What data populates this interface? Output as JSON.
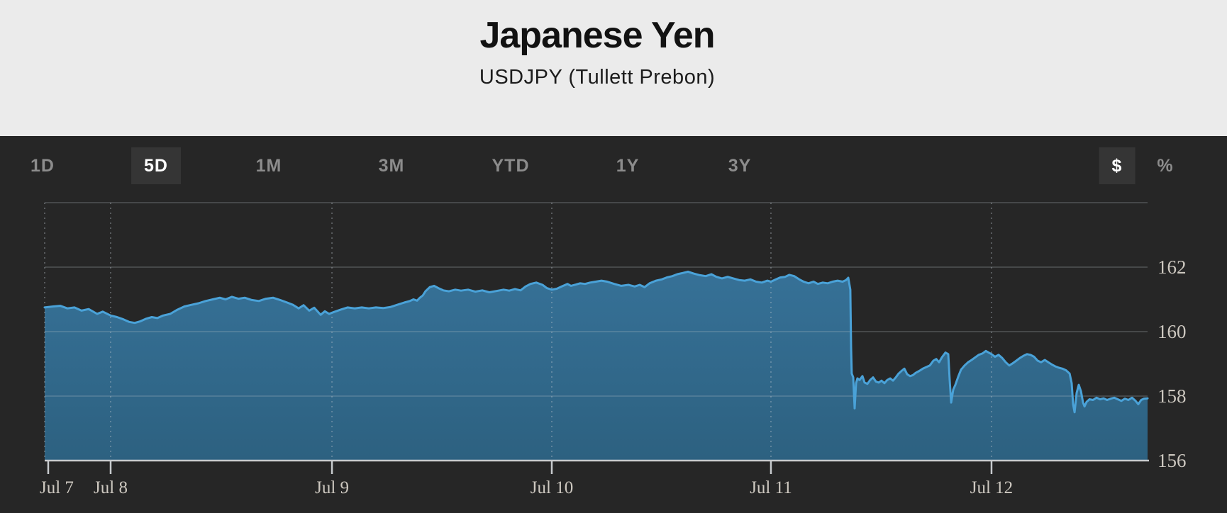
{
  "header": {
    "title": "Japanese Yen",
    "subtitle": "USDJPY  (Tullett Prebon)"
  },
  "toolbar": {
    "ranges": [
      {
        "label": "1D",
        "active": false
      },
      {
        "label": "5D",
        "active": true
      },
      {
        "label": "1M",
        "active": false
      },
      {
        "label": "3M",
        "active": false
      },
      {
        "label": "YTD",
        "active": false
      },
      {
        "label": "1Y",
        "active": false
      },
      {
        "label": "3Y",
        "active": false
      }
    ],
    "units": [
      {
        "label": "$",
        "active": true
      },
      {
        "label": "%",
        "active": false
      }
    ]
  },
  "colors": {
    "header_bg": "#ebebeb",
    "panel_bg": "#262626",
    "active_tab_bg": "#353535",
    "tab_text": "#8c8c8c",
    "line": "#4aa2d8",
    "area_top": "rgba(55,117,157,0.95)",
    "area_bottom": "rgba(45,100,133,0.95)",
    "grid": "rgba(185,195,202,0.22)",
    "grid_dotted": "rgba(185,195,202,0.35)",
    "axis": "#c7cacd",
    "axis_text": "#cdc8c0"
  },
  "chart_data": {
    "type": "area",
    "title": "Japanese Yen",
    "subtitle": "USDJPY (Tullett Prebon)",
    "series_name": "USDJPY",
    "xlabel": "",
    "ylabel": "",
    "ylim": [
      156,
      164
    ],
    "y_ticks": [
      156,
      158,
      160,
      162
    ],
    "grid": true,
    "legend": false,
    "y_axis_side": "right",
    "x_ticks": [
      {
        "label": "Jul 7",
        "f": 0.0032,
        "label_dx": 12
      },
      {
        "label": "Jul 8",
        "f": 0.0598,
        "label_dx": 0
      },
      {
        "label": "Jul 9",
        "f": 0.2605,
        "label_dx": 0
      },
      {
        "label": "Jul 10",
        "f": 0.4598,
        "label_dx": 0
      },
      {
        "label": "Jul 11",
        "f": 0.6585,
        "label_dx": 0
      },
      {
        "label": "Jul 12",
        "f": 0.8585,
        "label_dx": 0
      }
    ],
    "points": [
      [
        0.0,
        160.75
      ],
      [
        0.0077,
        160.78
      ],
      [
        0.0141,
        160.8
      ],
      [
        0.0206,
        160.72
      ],
      [
        0.027,
        160.75
      ],
      [
        0.0334,
        160.65
      ],
      [
        0.0399,
        160.7
      ],
      [
        0.0476,
        160.55
      ],
      [
        0.0527,
        160.62
      ],
      [
        0.0598,
        160.5
      ],
      [
        0.0656,
        160.45
      ],
      [
        0.0714,
        160.38
      ],
      [
        0.0765,
        160.3
      ],
      [
        0.0817,
        160.27
      ],
      [
        0.0868,
        160.32
      ],
      [
        0.092,
        160.4
      ],
      [
        0.0971,
        160.45
      ],
      [
        0.1022,
        160.42
      ],
      [
        0.1074,
        160.5
      ],
      [
        0.1138,
        160.55
      ],
      [
        0.1203,
        160.68
      ],
      [
        0.1267,
        160.78
      ],
      [
        0.1331,
        160.83
      ],
      [
        0.1395,
        160.88
      ],
      [
        0.146,
        160.95
      ],
      [
        0.1524,
        161.0
      ],
      [
        0.1588,
        161.05
      ],
      [
        0.164,
        161.0
      ],
      [
        0.1698,
        161.08
      ],
      [
        0.1756,
        161.02
      ],
      [
        0.1814,
        161.05
      ],
      [
        0.1878,
        160.98
      ],
      [
        0.1942,
        160.95
      ],
      [
        0.2006,
        161.02
      ],
      [
        0.2071,
        161.05
      ],
      [
        0.2135,
        160.98
      ],
      [
        0.2199,
        160.9
      ],
      [
        0.2251,
        160.83
      ],
      [
        0.2302,
        160.72
      ],
      [
        0.2347,
        160.82
      ],
      [
        0.2399,
        160.65
      ],
      [
        0.2444,
        160.74
      ],
      [
        0.2502,
        160.52
      ],
      [
        0.254,
        160.63
      ],
      [
        0.2579,
        160.55
      ],
      [
        0.2617,
        160.6
      ],
      [
        0.2682,
        160.68
      ],
      [
        0.2746,
        160.75
      ],
      [
        0.281,
        160.72
      ],
      [
        0.2875,
        160.75
      ],
      [
        0.2939,
        160.72
      ],
      [
        0.3003,
        160.75
      ],
      [
        0.3068,
        160.73
      ],
      [
        0.3132,
        160.76
      ],
      [
        0.3196,
        160.83
      ],
      [
        0.326,
        160.9
      ],
      [
        0.3312,
        160.95
      ],
      [
        0.3344,
        161.0
      ],
      [
        0.3376,
        160.96
      ],
      [
        0.3402,
        161.05
      ],
      [
        0.3428,
        161.12
      ],
      [
        0.3453,
        161.25
      ],
      [
        0.3492,
        161.38
      ],
      [
        0.3531,
        161.42
      ],
      [
        0.3569,
        161.35
      ],
      [
        0.3614,
        161.28
      ],
      [
        0.3666,
        161.25
      ],
      [
        0.3723,
        161.3
      ],
      [
        0.3775,
        161.27
      ],
      [
        0.3839,
        161.3
      ],
      [
        0.3904,
        161.24
      ],
      [
        0.3968,
        161.28
      ],
      [
        0.4032,
        161.22
      ],
      [
        0.4096,
        161.26
      ],
      [
        0.4161,
        161.3
      ],
      [
        0.4212,
        161.27
      ],
      [
        0.4264,
        161.32
      ],
      [
        0.4315,
        161.28
      ],
      [
        0.436,
        161.4
      ],
      [
        0.4405,
        161.48
      ],
      [
        0.4457,
        161.52
      ],
      [
        0.4514,
        161.45
      ],
      [
        0.4553,
        161.35
      ],
      [
        0.4598,
        161.3
      ],
      [
        0.4643,
        161.33
      ],
      [
        0.4688,
        161.4
      ],
      [
        0.474,
        161.48
      ],
      [
        0.4772,
        161.42
      ],
      [
        0.4817,
        161.46
      ],
      [
        0.4855,
        161.5
      ],
      [
        0.49,
        161.48
      ],
      [
        0.4945,
        161.52
      ],
      [
        0.4997,
        161.55
      ],
      [
        0.5048,
        161.58
      ],
      [
        0.51,
        161.55
      ],
      [
        0.5164,
        161.48
      ],
      [
        0.5228,
        161.42
      ],
      [
        0.5293,
        161.45
      ],
      [
        0.535,
        161.4
      ],
      [
        0.5395,
        161.45
      ],
      [
        0.544,
        161.38
      ],
      [
        0.5485,
        161.5
      ],
      [
        0.5543,
        161.58
      ],
      [
        0.5595,
        161.62
      ],
      [
        0.564,
        161.68
      ],
      [
        0.5691,
        161.72
      ],
      [
        0.5736,
        161.78
      ],
      [
        0.5788,
        161.82
      ],
      [
        0.5833,
        161.86
      ],
      [
        0.5884,
        161.8
      ],
      [
        0.5942,
        161.75
      ],
      [
        0.5994,
        161.72
      ],
      [
        0.6045,
        161.78
      ],
      [
        0.609,
        161.7
      ],
      [
        0.6141,
        161.65
      ],
      [
        0.6193,
        161.7
      ],
      [
        0.6244,
        161.65
      ],
      [
        0.6296,
        161.6
      ],
      [
        0.6347,
        161.58
      ],
      [
        0.6399,
        161.62
      ],
      [
        0.645,
        161.55
      ],
      [
        0.6502,
        161.52
      ],
      [
        0.6553,
        161.58
      ],
      [
        0.6585,
        161.55
      ],
      [
        0.663,
        161.62
      ],
      [
        0.6669,
        161.68
      ],
      [
        0.6714,
        161.7
      ],
      [
        0.6752,
        161.76
      ],
      [
        0.6797,
        161.72
      ],
      [
        0.6842,
        161.62
      ],
      [
        0.6881,
        161.55
      ],
      [
        0.6926,
        161.5
      ],
      [
        0.6971,
        161.55
      ],
      [
        0.701,
        161.48
      ],
      [
        0.7055,
        161.52
      ],
      [
        0.71,
        161.5
      ],
      [
        0.7145,
        161.55
      ],
      [
        0.719,
        161.58
      ],
      [
        0.7235,
        161.55
      ],
      [
        0.7267,
        161.6
      ],
      [
        0.7286,
        161.67
      ],
      [
        0.7305,
        161.3
      ],
      [
        0.7312,
        159.5
      ],
      [
        0.7318,
        158.7
      ],
      [
        0.7331,
        158.58
      ],
      [
        0.7344,
        157.62
      ],
      [
        0.7357,
        158.4
      ],
      [
        0.7369,
        158.55
      ],
      [
        0.7389,
        158.5
      ],
      [
        0.7415,
        158.62
      ],
      [
        0.7434,
        158.42
      ],
      [
        0.746,
        158.38
      ],
      [
        0.7485,
        158.5
      ],
      [
        0.7511,
        158.58
      ],
      [
        0.7537,
        158.45
      ],
      [
        0.7563,
        158.42
      ],
      [
        0.7588,
        158.48
      ],
      [
        0.7614,
        158.4
      ],
      [
        0.764,
        158.5
      ],
      [
        0.7666,
        158.55
      ],
      [
        0.7692,
        158.48
      ],
      [
        0.7717,
        158.58
      ],
      [
        0.7743,
        158.7
      ],
      [
        0.7769,
        158.78
      ],
      [
        0.7795,
        158.85
      ],
      [
        0.782,
        158.68
      ],
      [
        0.7846,
        158.62
      ],
      [
        0.7872,
        158.65
      ],
      [
        0.7898,
        158.72
      ],
      [
        0.793,
        158.78
      ],
      [
        0.7962,
        158.85
      ],
      [
        0.7994,
        158.9
      ],
      [
        0.8026,
        158.95
      ],
      [
        0.8058,
        159.1
      ],
      [
        0.8084,
        159.15
      ],
      [
        0.811,
        159.05
      ],
      [
        0.8135,
        159.2
      ],
      [
        0.8167,
        159.35
      ],
      [
        0.8193,
        159.3
      ],
      [
        0.8206,
        158.5
      ],
      [
        0.8219,
        157.8
      ],
      [
        0.8238,
        158.2
      ],
      [
        0.8257,
        158.35
      ],
      [
        0.8283,
        158.6
      ],
      [
        0.8309,
        158.82
      ],
      [
        0.8341,
        158.95
      ],
      [
        0.8373,
        159.05
      ],
      [
        0.8405,
        159.12
      ],
      [
        0.8437,
        159.2
      ],
      [
        0.8469,
        159.28
      ],
      [
        0.8502,
        159.32
      ],
      [
        0.8534,
        159.4
      ],
      [
        0.8559,
        159.35
      ],
      [
        0.8585,
        159.3
      ],
      [
        0.8617,
        159.22
      ],
      [
        0.8649,
        159.28
      ],
      [
        0.8682,
        159.18
      ],
      [
        0.8714,
        159.05
      ],
      [
        0.8746,
        158.95
      ],
      [
        0.8778,
        159.02
      ],
      [
        0.881,
        159.1
      ],
      [
        0.8842,
        159.18
      ],
      [
        0.8875,
        159.25
      ],
      [
        0.8907,
        159.3
      ],
      [
        0.8939,
        159.28
      ],
      [
        0.8971,
        159.22
      ],
      [
        0.9003,
        159.1
      ],
      [
        0.9035,
        159.05
      ],
      [
        0.9068,
        159.12
      ],
      [
        0.91,
        159.05
      ],
      [
        0.9132,
        158.98
      ],
      [
        0.9164,
        158.92
      ],
      [
        0.9196,
        158.88
      ],
      [
        0.9228,
        158.85
      ],
      [
        0.9261,
        158.8
      ],
      [
        0.9293,
        158.7
      ],
      [
        0.9312,
        158.4
      ],
      [
        0.9325,
        157.75
      ],
      [
        0.9338,
        157.5
      ],
      [
        0.9357,
        158.1
      ],
      [
        0.9376,
        158.35
      ],
      [
        0.9396,
        158.15
      ],
      [
        0.9415,
        157.8
      ],
      [
        0.9428,
        157.68
      ],
      [
        0.9447,
        157.82
      ],
      [
        0.9473,
        157.9
      ],
      [
        0.9505,
        157.88
      ],
      [
        0.9537,
        157.95
      ],
      [
        0.9569,
        157.9
      ],
      [
        0.9601,
        157.93
      ],
      [
        0.9633,
        157.88
      ],
      [
        0.9666,
        157.92
      ],
      [
        0.9698,
        157.95
      ],
      [
        0.973,
        157.9
      ],
      [
        0.9762,
        157.85
      ],
      [
        0.9794,
        157.92
      ],
      [
        0.9826,
        157.88
      ],
      [
        0.9859,
        157.95
      ],
      [
        0.9891,
        157.85
      ],
      [
        0.9916,
        157.75
      ],
      [
        0.9942,
        157.88
      ],
      [
        0.9968,
        157.92
      ],
      [
        1.0,
        157.93
      ]
    ]
  }
}
